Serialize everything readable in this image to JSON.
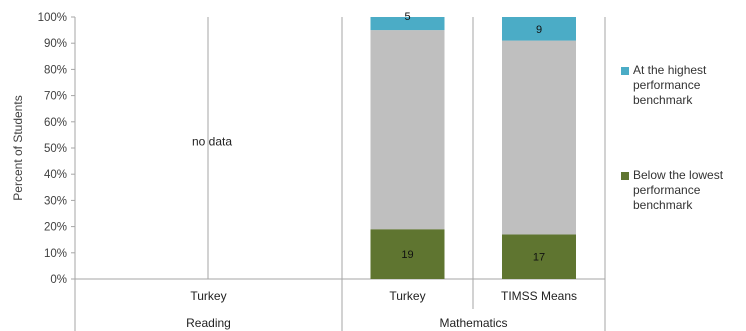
{
  "chart_data": {
    "type": "bar",
    "stacked": true,
    "y_axis": {
      "label": "Percent of Students",
      "ticks": [
        "0%",
        "10%",
        "20%",
        "30%",
        "40%",
        "50%",
        "60%",
        "70%",
        "80%",
        "90%",
        "100%"
      ],
      "ylim": [
        0,
        100
      ]
    },
    "groups": [
      {
        "name": "Reading",
        "categories": [
          {
            "name": "Turkey",
            "note": "no data",
            "segments": null
          }
        ]
      },
      {
        "name": "Mathematics",
        "categories": [
          {
            "name": "Turkey",
            "segments": {
              "below": 19,
              "middle": 76,
              "top": 5
            },
            "labels": {
              "below": "19",
              "top": "5"
            }
          },
          {
            "name": "TIMSS Means",
            "segments": {
              "below": 17,
              "middle": 74,
              "top": 9
            },
            "labels": {
              "below": "17",
              "top": "9"
            }
          }
        ]
      }
    ],
    "series": [
      {
        "key": "top",
        "name": "At the highest performance benchmark",
        "color": "#4bacc6"
      },
      {
        "key": "middle",
        "color": "#bfbfbf"
      },
      {
        "key": "below",
        "name": "Below the lowest performance benchmark",
        "color": "#5f7530"
      }
    ],
    "grid": false,
    "legend_position": "right"
  }
}
